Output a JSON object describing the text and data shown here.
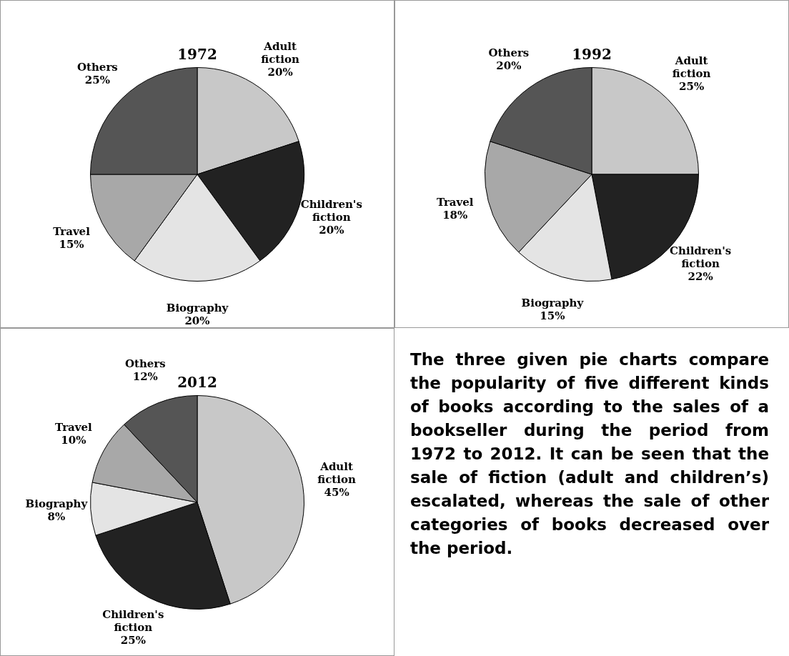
{
  "chart_data": [
    {
      "type": "pie",
      "title": "1972",
      "categories": [
        "Adult fiction",
        "Children's fiction",
        "Biography",
        "Travel",
        "Others"
      ],
      "values": [
        20,
        20,
        20,
        15,
        25
      ],
      "value_labels": [
        "20%",
        "20%",
        "20%",
        "15%",
        "25%"
      ],
      "colors": [
        "#c8c8c8",
        "#222222",
        "#e4e4e4",
        "#a8a8a8",
        "#555555"
      ]
    },
    {
      "type": "pie",
      "title": "1992",
      "categories": [
        "Adult fiction",
        "Children's fiction",
        "Biography",
        "Travel",
        "Others"
      ],
      "values": [
        25,
        22,
        15,
        18,
        20
      ],
      "value_labels": [
        "25%",
        "22%",
        "15%",
        "18%",
        "20%"
      ],
      "colors": [
        "#c8c8c8",
        "#222222",
        "#e4e4e4",
        "#a8a8a8",
        "#555555"
      ]
    },
    {
      "type": "pie",
      "title": "2012",
      "categories": [
        "Adult fiction",
        "Children's fiction",
        "Biography",
        "Travel",
        "Others"
      ],
      "values": [
        45,
        25,
        8,
        10,
        12
      ],
      "value_labels": [
        "45%",
        "25%",
        "8%",
        "10%",
        "12%"
      ],
      "colors": [
        "#c8c8c8",
        "#222222",
        "#e4e4e4",
        "#a8a8a8",
        "#555555"
      ]
    },
    {
      "type": "other",
      "annotations": [
        "The three given pie charts compare the popularity of five different kinds of books according to the sales of a bookseller during the period from 1972 to 2012. It can be seen that the sale of fiction (adult and children’s) escalated, whereas the sale of other categories of books decreased over the period."
      ]
    }
  ]
}
